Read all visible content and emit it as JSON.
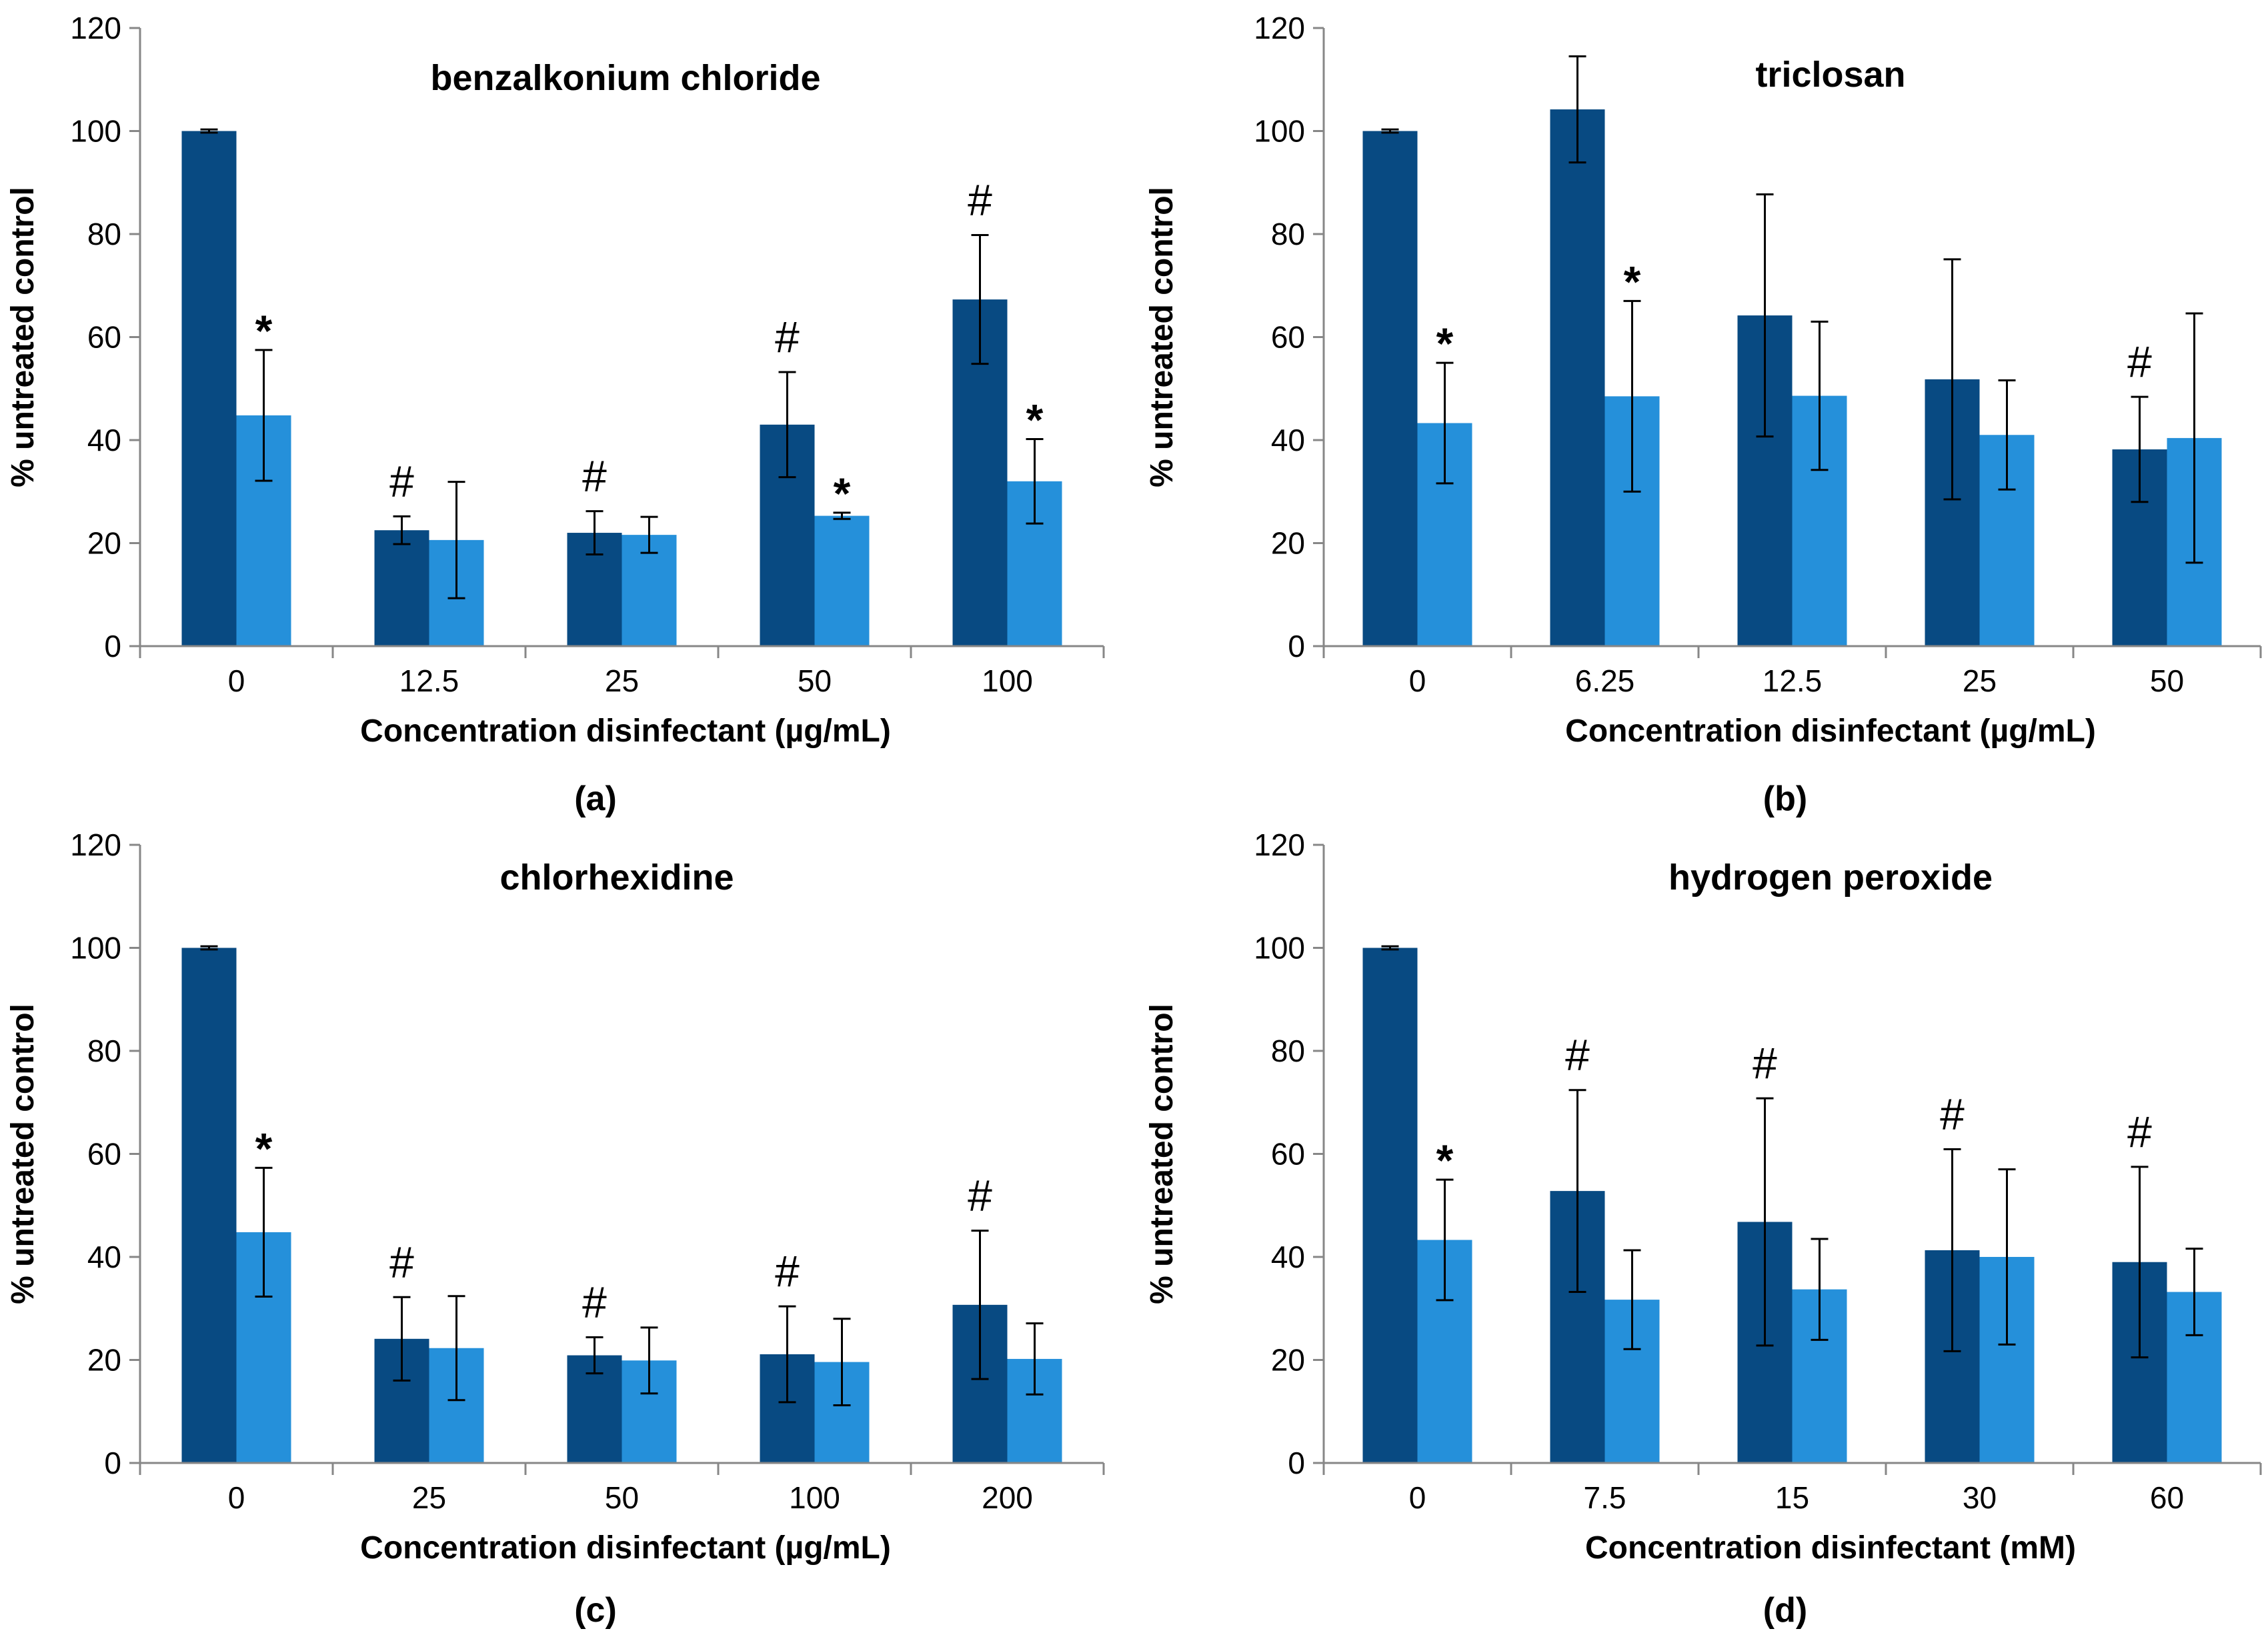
{
  "colors": {
    "series_dark": "#084A82",
    "series_light": "#2590DA",
    "axis": "#878787",
    "text": "#000000"
  },
  "chart_data": [
    {
      "type": "bar",
      "panel_label": "(a)",
      "title": "benzalkonium chloride",
      "xlabel": "Concentration disinfectant (µg/mL)",
      "ylabel": "% untreated control",
      "ylim": [
        0,
        120
      ],
      "yticks": [
        0,
        20,
        40,
        60,
        80,
        100,
        120
      ],
      "categories": [
        "0",
        "12.5",
        "25",
        "50",
        "100"
      ],
      "series": [
        {
          "name": "dark",
          "values": [
            100,
            22.5,
            22,
            43,
            67.3
          ],
          "errors": [
            0.3,
            2.7,
            4.2,
            10.2,
            12.5
          ],
          "marks": [
            "",
            "#",
            "#",
            "#",
            "#"
          ]
        },
        {
          "name": "light",
          "values": [
            44.8,
            20.6,
            21.6,
            25.3,
            32
          ],
          "errors": [
            12.7,
            11.3,
            3.5,
            0.6,
            8.2
          ],
          "marks": [
            "*",
            "",
            "",
            "*",
            "*"
          ]
        }
      ]
    },
    {
      "type": "bar",
      "panel_label": "(b)",
      "title": "triclosan",
      "xlabel": "Concentration disinfectant (µg/mL)",
      "ylabel": "% untreated control",
      "ylim": [
        0,
        120
      ],
      "yticks": [
        0,
        20,
        40,
        60,
        80,
        100,
        120
      ],
      "categories": [
        "0",
        "6.25",
        "12.5",
        "25",
        "50"
      ],
      "series": [
        {
          "name": "dark",
          "values": [
            100,
            104.2,
            64.2,
            51.8,
            38.2
          ],
          "errors": [
            0.3,
            10.3,
            23.5,
            23.3,
            10.2
          ],
          "marks": [
            "",
            "",
            "",
            "",
            "#"
          ]
        },
        {
          "name": "light",
          "values": [
            43.3,
            48.5,
            48.6,
            41,
            40.4
          ],
          "errors": [
            11.7,
            18.5,
            14.4,
            10.6,
            24.2
          ],
          "marks": [
            "*",
            "*",
            "",
            "",
            ""
          ]
        }
      ]
    },
    {
      "type": "bar",
      "panel_label": "(c)",
      "title": "chlorhexidine",
      "xlabel": "Concentration disinfectant (µg/mL)",
      "ylabel": "% untreated control",
      "ylim": [
        0,
        120
      ],
      "yticks": [
        0,
        20,
        40,
        60,
        80,
        100,
        120
      ],
      "categories": [
        "0",
        "25",
        "50",
        "100",
        "200"
      ],
      "series": [
        {
          "name": "dark",
          "values": [
            100,
            24.1,
            20.9,
            21.1,
            30.7
          ],
          "errors": [
            0.3,
            8.1,
            3.5,
            9.3,
            14.4
          ],
          "marks": [
            "",
            "#",
            "#",
            "#",
            "#"
          ]
        },
        {
          "name": "light",
          "values": [
            44.8,
            22.3,
            19.9,
            19.6,
            20.2
          ],
          "errors": [
            12.5,
            10.1,
            6.4,
            8.4,
            6.9
          ],
          "marks": [
            "*",
            "",
            "",
            "",
            ""
          ]
        }
      ]
    },
    {
      "type": "bar",
      "panel_label": "(d)",
      "title": "hydrogen peroxide",
      "xlabel": "Concentration disinfectant (mM)",
      "ylabel": "% untreated control",
      "ylim": [
        0,
        120
      ],
      "yticks": [
        0,
        20,
        40,
        60,
        80,
        100,
        120
      ],
      "categories": [
        "0",
        "7.5",
        "15",
        "30",
        "60"
      ],
      "series": [
        {
          "name": "dark",
          "values": [
            100,
            52.8,
            46.8,
            41.3,
            39
          ],
          "errors": [
            0.3,
            19.6,
            24,
            19.6,
            18.5
          ],
          "marks": [
            "",
            "#",
            "#",
            "#",
            "#"
          ]
        },
        {
          "name": "light",
          "values": [
            43.3,
            31.7,
            33.7,
            40,
            33.2
          ],
          "errors": [
            11.7,
            9.6,
            9.8,
            17,
            8.4
          ],
          "marks": [
            "*",
            "",
            "",
            "",
            ""
          ]
        }
      ]
    }
  ]
}
